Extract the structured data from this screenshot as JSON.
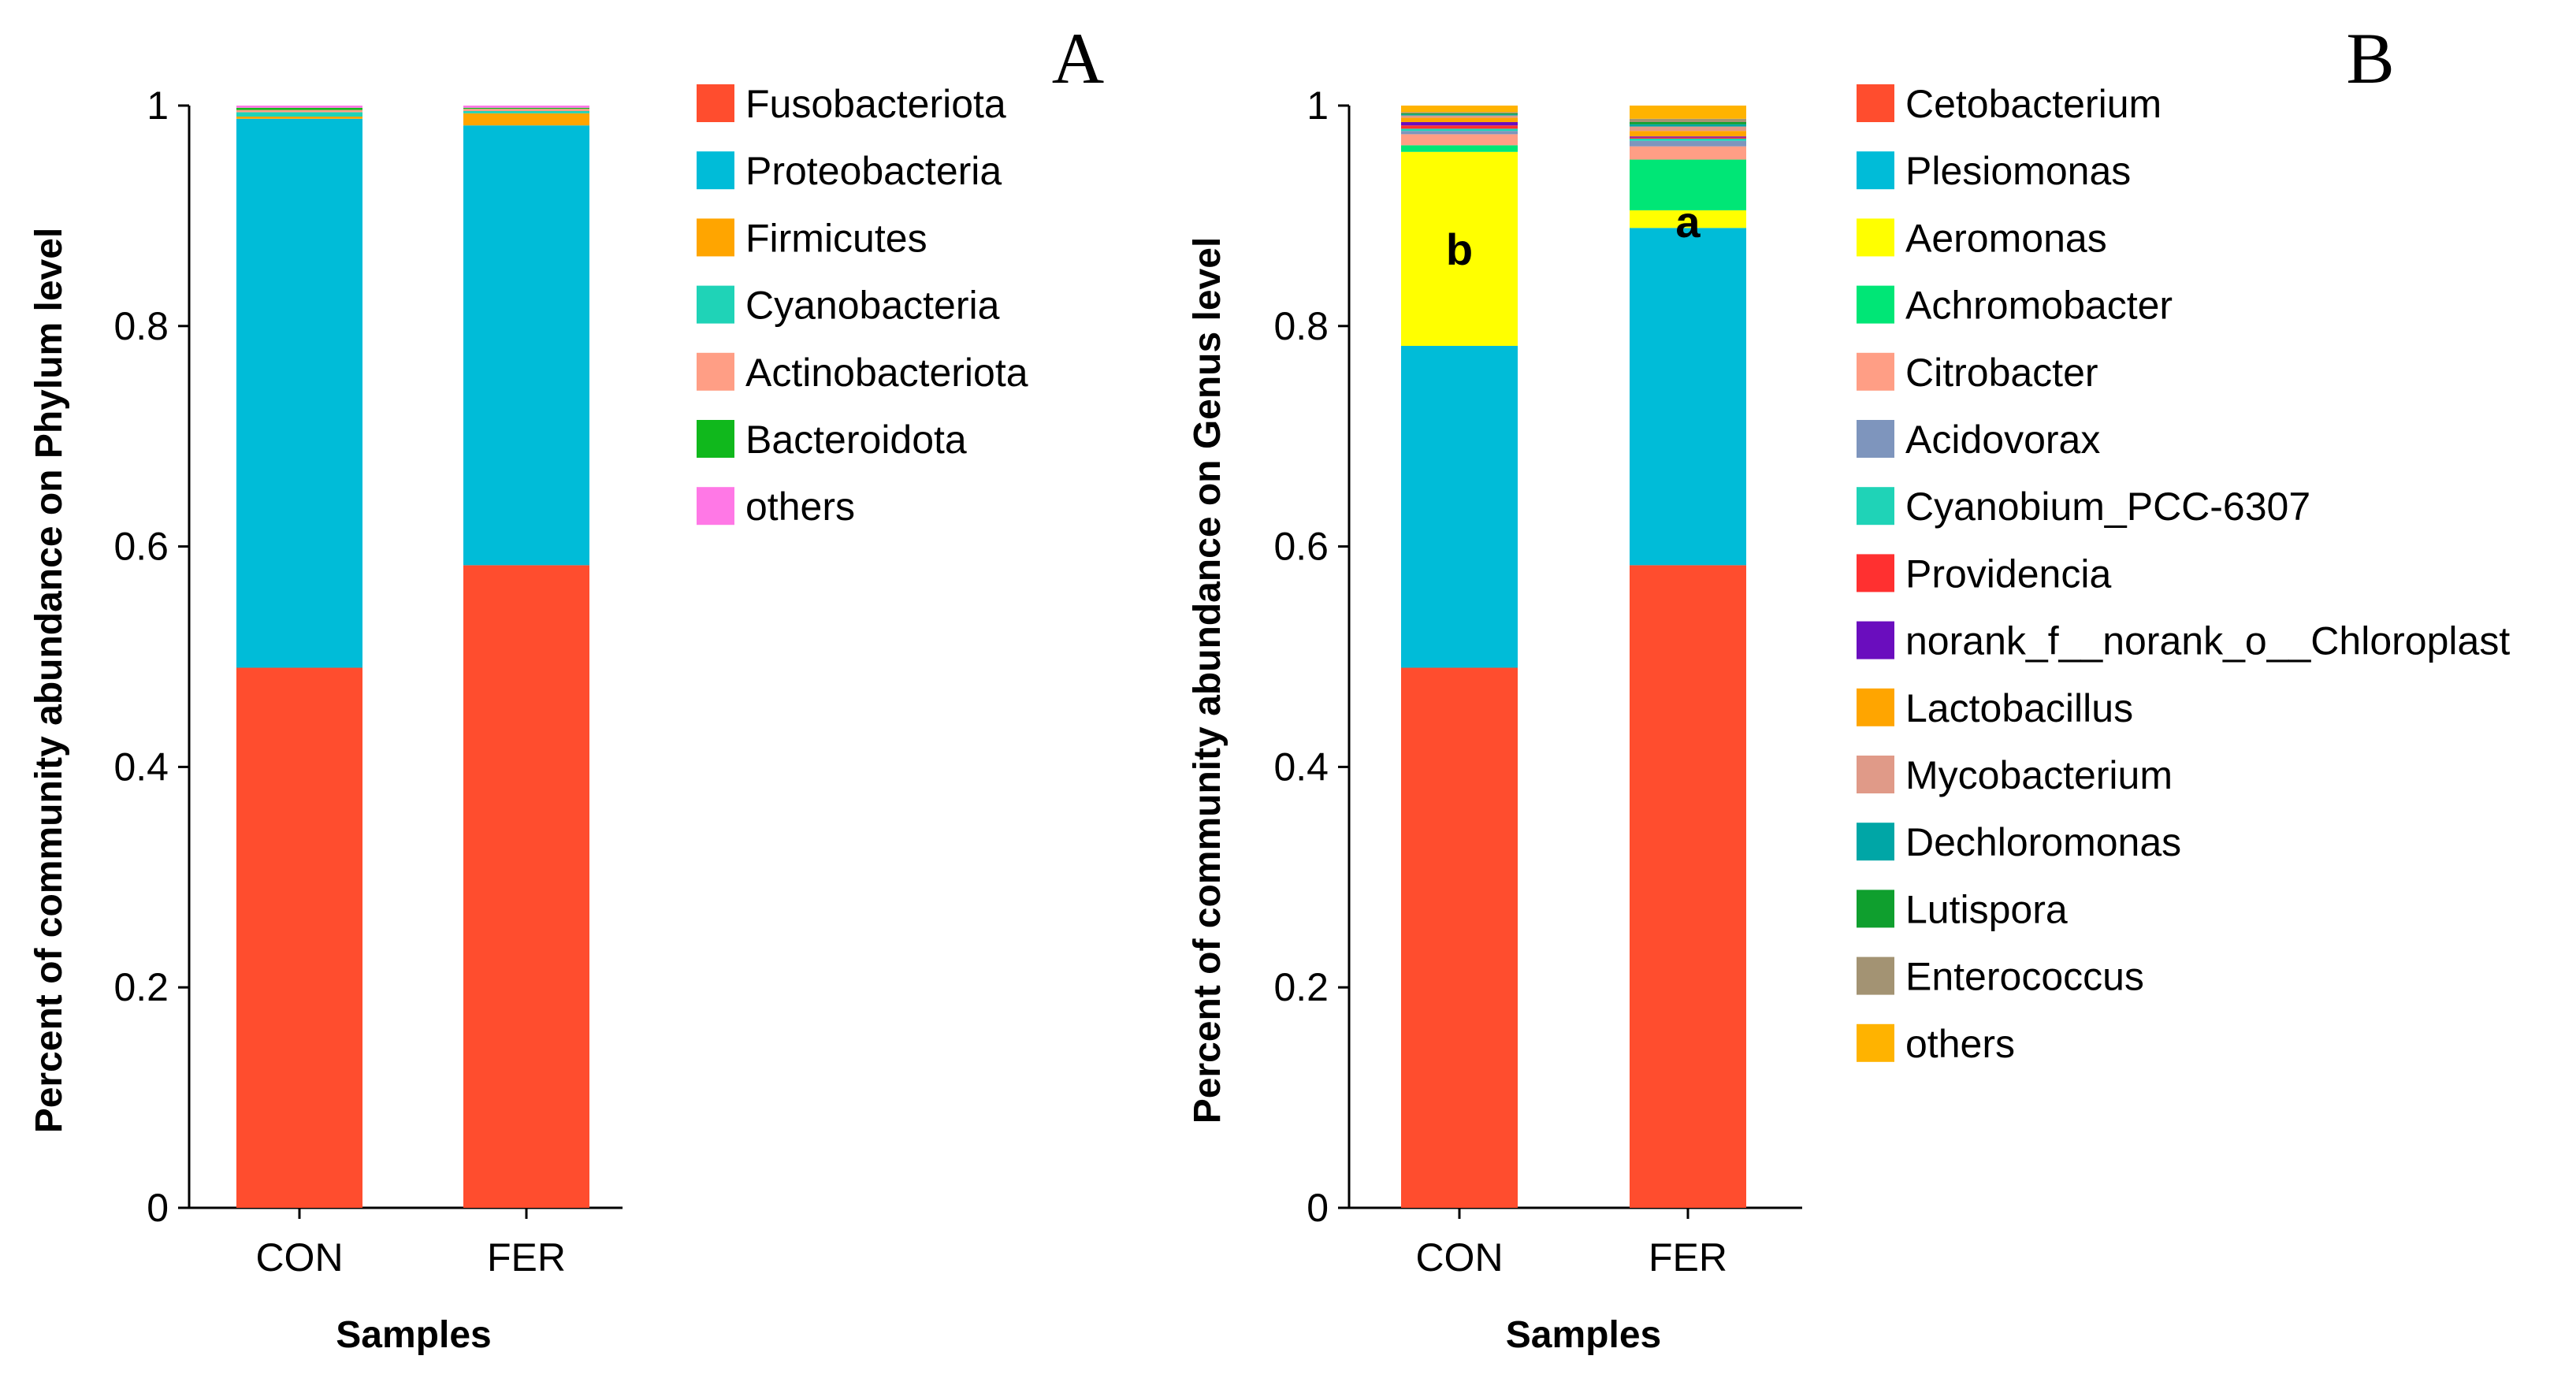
{
  "chart_data": [
    {
      "panel": "A",
      "type": "bar",
      "stacked": true,
      "categories": [
        "CON",
        "FER"
      ],
      "xlabel": "Samples",
      "ylabel": "Percent of community abundance on Phylum level",
      "ylim": [
        0,
        1
      ],
      "yticks": [
        "0",
        "0.2",
        "0.4",
        "0.6",
        "0.8",
        "1"
      ],
      "legend_position": "right",
      "series": [
        {
          "name": "Fusobacteriota",
          "color": "#FF4D2E",
          "values": [
            0.49,
            0.583
          ]
        },
        {
          "name": "Proteobacteria",
          "color": "#00BCD8",
          "values": [
            0.498,
            0.399
          ]
        },
        {
          "name": "Firmicutes",
          "color": "#FFA500",
          "values": [
            0.002,
            0.011
          ]
        },
        {
          "name": "Cyanobacteria",
          "color": "#1FD3B7",
          "values": [
            0.004,
            0.002
          ]
        },
        {
          "name": "Actinobacteriota",
          "color": "#FF9E85",
          "values": [
            0.002,
            0.002
          ]
        },
        {
          "name": "Bacteroidota",
          "color": "#10B81C",
          "values": [
            0.002,
            0.001
          ]
        },
        {
          "name": "others",
          "color": "#FF78E6",
          "values": [
            0.002,
            0.002
          ]
        }
      ],
      "annotations": []
    },
    {
      "panel": "B",
      "type": "bar",
      "stacked": true,
      "categories": [
        "CON",
        "FER"
      ],
      "xlabel": "Samples",
      "ylabel": "Percent of community abundance on Genus level",
      "ylim": [
        0,
        1
      ],
      "yticks": [
        "0",
        "0.2",
        "0.4",
        "0.6",
        "0.8",
        "1"
      ],
      "legend_position": "right",
      "series": [
        {
          "name": "Cetobacterium",
          "color": "#FF4D2E",
          "values": [
            0.49,
            0.583
          ]
        },
        {
          "name": "Plesiomonas",
          "color": "#00BCD8",
          "values": [
            0.292,
            0.306
          ]
        },
        {
          "name": "Aeromonas",
          "color": "#FFFF00",
          "values": [
            0.176,
            0.016
          ]
        },
        {
          "name": "Achromobacter",
          "color": "#00E676",
          "values": [
            0.006,
            0.046
          ]
        },
        {
          "name": "Citrobacter",
          "color": "#FF9E85",
          "values": [
            0.01,
            0.012
          ]
        },
        {
          "name": "Acidovorax",
          "color": "#7E95BD",
          "values": [
            0.003,
            0.005
          ]
        },
        {
          "name": "Cyanobium_PCC-6307",
          "color": "#1FD3B7",
          "values": [
            0.002,
            0.002
          ]
        },
        {
          "name": "Providencia",
          "color": "#FF3030",
          "values": [
            0.003,
            0.001
          ]
        },
        {
          "name": "norank_f__norank_o__Chloroplast",
          "color": "#6A0DBE",
          "values": [
            0.003,
            0.001
          ]
        },
        {
          "name": "Lactobacillus",
          "color": "#FFA500",
          "values": [
            0.004,
            0.005
          ]
        },
        {
          "name": "Mycobacterium",
          "color": "#E09A88",
          "values": [
            0.002,
            0.004
          ]
        },
        {
          "name": "Dechloromonas",
          "color": "#00A6A6",
          "values": [
            0.001,
            0.002
          ]
        },
        {
          "name": "Lutispora",
          "color": "#0F9F2E",
          "values": [
            0.001,
            0.002
          ]
        },
        {
          "name": "Enterococcus",
          "color": "#A39373",
          "values": [
            0.001,
            0.003
          ]
        },
        {
          "name": "others",
          "color": "#FFB300",
          "values": [
            0.006,
            0.012
          ]
        }
      ],
      "annotations": [
        {
          "text": "b",
          "category": "CON",
          "y": 0.87
        },
        {
          "text": "a",
          "category": "FER",
          "y": 0.895
        }
      ]
    }
  ]
}
